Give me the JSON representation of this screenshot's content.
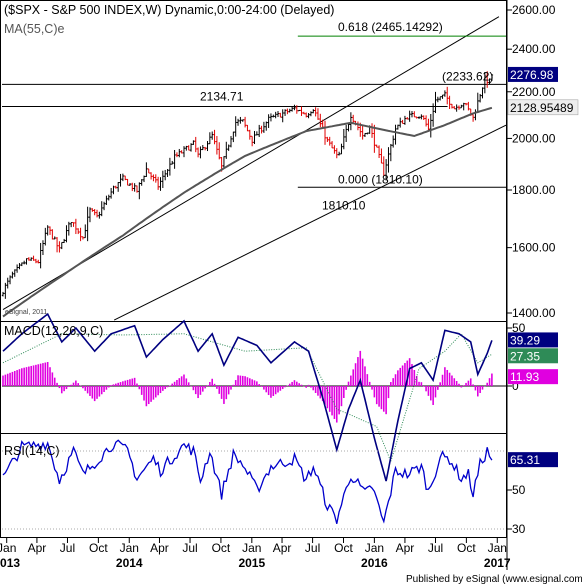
{
  "header": {
    "title": "($SPX - S&P 500 INDEX,W) Dynamic,0:00-24:00 (Delayed)",
    "ma_label": "MA(55,C)e",
    "watermark": "eSignal, 2011"
  },
  "footer": {
    "published": "Published by eSignal (www.esignal.com)"
  },
  "colors": {
    "price_up": "#000000",
    "price_down": "#e00000",
    "ma": "#555555",
    "macd_line": "#000080",
    "signal_line": "#2e8b57",
    "histogram": "#e000e0",
    "rsi_line": "#0000cc",
    "fib_line": "#008000"
  },
  "chart_data": [
    {
      "type": "line",
      "panel": "price",
      "y_scale": "log",
      "ylim": [
        1380,
        2650
      ],
      "yticks": [
        "2600.00",
        "2400.00",
        "2200.00",
        "2000.00",
        "1800.00",
        "1600.00",
        "1400.00"
      ],
      "ytick_values": [
        2600,
        2400,
        2200,
        2000,
        1800,
        1600,
        1400
      ],
      "xlim": [
        "2013-01-01",
        "2017-02-10"
      ],
      "series": [
        {
          "values_anchor_dates": [
            "2013-01-04",
            "2013-02-01",
            "2013-03-15",
            "2013-04-19",
            "2013-05-17",
            "2013-06-21",
            "2013-07-26",
            "2013-08-30",
            "2013-09-20",
            "2013-10-11",
            "2013-11-29",
            "2013-12-27",
            "2014-02-07",
            "2014-03-07",
            "2014-04-11",
            "2014-05-30",
            "2014-07-25",
            "2014-08-08",
            "2014-09-19",
            "2014-10-17",
            "2014-11-28",
            "2014-12-19",
            "2015-01-16",
            "2015-03-06",
            "2015-05-22",
            "2015-06-26",
            "2015-07-17",
            "2015-08-28",
            "2015-09-30",
            "2015-11-06",
            "2015-12-11",
            "2016-01-01",
            "2016-02-12",
            "2016-03-18",
            "2016-04-22",
            "2016-06-03",
            "2016-06-24",
            "2016-07-15",
            "2016-08-12",
            "2016-09-09",
            "2016-10-07",
            "2016-11-04",
            "2016-12-09",
            "2016-12-30"
          ],
          "values_anchor_closes": [
            1466,
            1513,
            1560,
            1555,
            1667,
            1592,
            1692,
            1633,
            1726,
            1703,
            1806,
            1842,
            1797,
            1878,
            1815,
            1924,
            1978,
            1931,
            2011,
            1886,
            2067,
            2070,
            1993,
            2079,
            2126,
            2101,
            2127,
            1989,
            1920,
            2099,
            2012,
            2044,
            1864,
            2040,
            2092,
            2099,
            2037,
            2162,
            2184,
            2128,
            2153,
            2085,
            2259,
            2239
          ],
          "close_last": 2276.98
        },
        {
          "ma_anchor_dates": [
            "2013-01-04",
            "2013-06-28",
            "2013-12-27",
            "2014-06-27",
            "2014-12-26",
            "2015-06-26",
            "2015-11-06",
            "2016-02-12",
            "2016-05-13",
            "2016-08-12",
            "2016-11-04",
            "2016-12-30"
          ],
          "ma_anchor_values": [
            1390,
            1510,
            1640,
            1790,
            1930,
            2030,
            2065,
            2035,
            2010,
            2055,
            2105,
            2129
          ]
        }
      ],
      "annotations": {
        "fib_618": "0.618 (2465.14292)",
        "fib_618_value": 2465.14292,
        "fib_000": "0.000 (1810.10)",
        "fib_000_value": 1810.1,
        "low_label": "1810.10",
        "high_label": "2134.71",
        "high_value": 2134.71,
        "target_label": "(2233.62)",
        "target_value": 2233.62
      },
      "channel": {
        "upper_start": [
          "2013-01-04",
          1410
        ],
        "upper_end": [
          "2017-01-20",
          2565
        ],
        "lower_start": [
          "2013-12-01",
          1380
        ],
        "lower_end": [
          "2017-02-10",
          2055
        ]
      },
      "value_badges": {
        "close": "2276.98",
        "ma": "2128.95489"
      }
    },
    {
      "type": "line",
      "panel": "macd",
      "label": "MACD(12,26,9,C)",
      "ylim": [
        -90,
        68
      ],
      "yticks": [
        "50",
        "0"
      ],
      "ytick_values": [
        50,
        0
      ],
      "macd_anchor_dates": [
        "2013-01-04",
        "2013-03-01",
        "2013-05-17",
        "2013-06-28",
        "2013-08-09",
        "2013-10-04",
        "2013-11-22",
        "2014-01-31",
        "2014-03-07",
        "2014-04-25",
        "2014-06-27",
        "2014-08-08",
        "2014-09-19",
        "2014-10-24",
        "2014-12-05",
        "2015-01-30",
        "2015-03-13",
        "2015-05-22",
        "2015-07-03",
        "2015-08-14",
        "2015-09-25",
        "2015-10-30",
        "2015-12-04",
        "2016-01-15",
        "2016-02-19",
        "2016-03-25",
        "2016-04-29",
        "2016-06-03",
        "2016-07-08",
        "2016-08-12",
        "2016-09-23",
        "2016-10-28",
        "2016-11-18",
        "2016-12-16",
        "2016-12-30"
      ],
      "macd_anchor_values": [
        30,
        45,
        62,
        38,
        50,
        30,
        45,
        52,
        25,
        40,
        56,
        30,
        45,
        18,
        42,
        35,
        20,
        38,
        30,
        -10,
        -55,
        -20,
        5,
        -45,
        -82,
        -30,
        15,
        20,
        5,
        48,
        45,
        38,
        10,
        28,
        39.29
      ],
      "signal_anchor_dates": [
        "2013-01-04",
        "2013-06-28",
        "2013-12-27",
        "2014-06-27",
        "2014-12-26",
        "2015-06-26",
        "2015-09-25",
        "2015-11-06",
        "2016-01-22",
        "2016-03-04",
        "2016-05-27",
        "2016-08-12",
        "2016-09-30",
        "2016-11-18",
        "2016-12-30"
      ],
      "signal_anchor_values": [
        20,
        45,
        44,
        45,
        30,
        33,
        -20,
        -25,
        -35,
        -65,
        15,
        30,
        45,
        20,
        27.35
      ],
      "value_badges": {
        "macd": "39.29",
        "signal": "27.35",
        "hist": "11.93"
      }
    },
    {
      "type": "line",
      "panel": "rsi",
      "label": "RSI(14,C)",
      "ylim": [
        24,
        80
      ],
      "yticks": [
        "50",
        "30"
      ],
      "ytick_values": [
        50,
        30
      ],
      "rsi_anchor_dates": [
        "2013-01-04",
        "2013-03-01",
        "2013-05-17",
        "2013-06-21",
        "2013-08-02",
        "2013-08-30",
        "2013-10-04",
        "2013-11-29",
        "2014-01-10",
        "2014-02-07",
        "2014-03-28",
        "2014-04-18",
        "2014-06-27",
        "2014-07-25",
        "2014-08-15",
        "2014-09-12",
        "2014-10-17",
        "2014-11-21",
        "2014-12-19",
        "2015-01-30",
        "2015-03-13",
        "2015-05-22",
        "2015-06-26",
        "2015-07-17",
        "2015-08-28",
        "2015-09-25",
        "2015-11-06",
        "2015-12-18",
        "2016-01-08",
        "2016-02-12",
        "2016-03-18",
        "2016-04-22",
        "2016-06-03",
        "2016-06-24",
        "2016-07-29",
        "2016-08-26",
        "2016-09-30",
        "2016-10-21",
        "2016-11-04",
        "2016-11-25",
        "2016-12-16",
        "2016-12-30"
      ],
      "rsi_anchor_values": [
        56,
        72,
        74,
        55,
        70,
        58,
        64,
        74,
        70,
        56,
        66,
        60,
        73,
        70,
        55,
        70,
        48,
        68,
        63,
        50,
        62,
        66,
        55,
        62,
        42,
        35,
        58,
        48,
        52,
        33,
        60,
        58,
        62,
        49,
        67,
        66,
        56,
        58,
        48,
        63,
        70,
        65.31
      ],
      "value_badges": {
        "rsi": "65.31"
      }
    }
  ],
  "x_axis": {
    "month_labels": [
      {
        "label": "Jan",
        "date": "2013-01-15"
      },
      {
        "label": "Apr",
        "date": "2013-04-15"
      },
      {
        "label": "Jul",
        "date": "2013-07-15"
      },
      {
        "label": "Oct",
        "date": "2013-10-15"
      },
      {
        "label": "Jan",
        "date": "2014-01-15"
      },
      {
        "label": "Apr",
        "date": "2014-04-15"
      },
      {
        "label": "Jul",
        "date": "2014-07-15"
      },
      {
        "label": "Oct",
        "date": "2014-10-15"
      },
      {
        "label": "Jan",
        "date": "2015-01-15"
      },
      {
        "label": "Apr",
        "date": "2015-04-15"
      },
      {
        "label": "Jul",
        "date": "2015-07-15"
      },
      {
        "label": "Oct",
        "date": "2015-10-15"
      },
      {
        "label": "Jan",
        "date": "2016-01-15"
      },
      {
        "label": "Apr",
        "date": "2016-04-15"
      },
      {
        "label": "Jul",
        "date": "2016-07-15"
      },
      {
        "label": "Oct",
        "date": "2016-10-15"
      },
      {
        "label": "Jan",
        "date": "2017-01-15"
      }
    ],
    "year_labels": [
      {
        "label": "2013",
        "date": "2013-01-15"
      },
      {
        "label": "2014",
        "date": "2014-01-15"
      },
      {
        "label": "2015",
        "date": "2015-01-15"
      },
      {
        "label": "2016",
        "date": "2016-01-15"
      },
      {
        "label": "2017",
        "date": "2017-01-15"
      }
    ]
  }
}
